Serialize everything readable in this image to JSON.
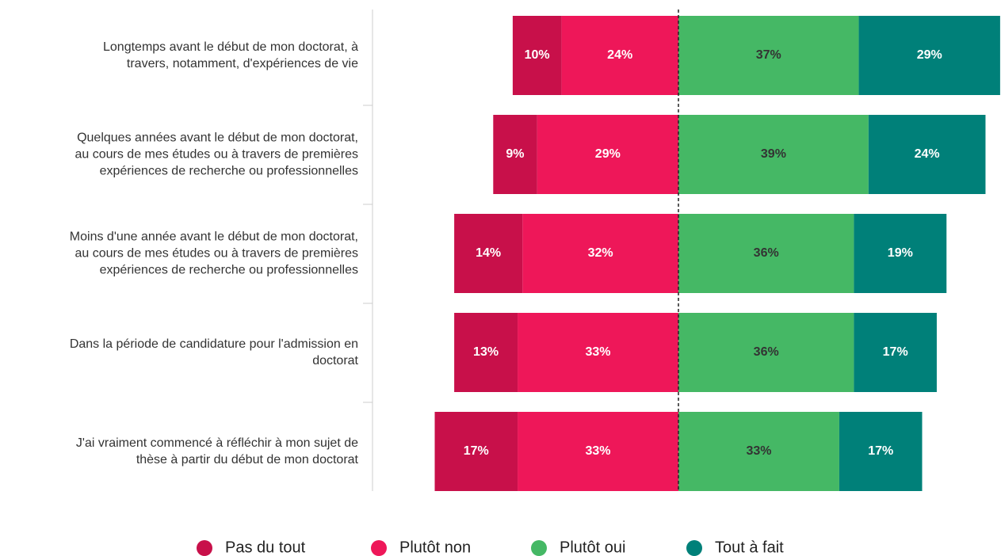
{
  "chart_data": {
    "type": "diverging-bar",
    "categories": [
      "Longtemps avant le début de mon doctorat, à\ntravers, notamment, d'expériences de vie",
      "Quelques années avant le début de mon doctorat,\nau cours de mes études ou à travers de premières\nexpériences de recherche ou professionnelles",
      "Moins d'une année avant le début de mon doctorat,\nau cours de mes études ou à travers de premières\nexpériences de recherche ou professionnelles",
      "Dans la période de candidature pour l'admission en\ndoctorat",
      "J'ai vraiment commencé à réfléchir à mon sujet de\nthèse à partir du début de mon doctorat"
    ],
    "series": [
      {
        "name": "Pas du tout",
        "color": "#c8104a",
        "side": "negative",
        "values": [
          10,
          9,
          14,
          13,
          17
        ],
        "value_labels": [
          "10%",
          "9%",
          "14%",
          "13%",
          "17%"
        ]
      },
      {
        "name": "Plutôt non",
        "color": "#ee1759",
        "side": "negative",
        "values": [
          24,
          29,
          32,
          33,
          33
        ],
        "value_labels": [
          "24%",
          "29%",
          "32%",
          "33%",
          "33%"
        ]
      },
      {
        "name": "Plutôt oui",
        "color": "#45b865",
        "side": "positive",
        "values": [
          37,
          39,
          36,
          36,
          33
        ],
        "value_labels": [
          "37%",
          "39%",
          "36%",
          "36%",
          "33%"
        ]
      },
      {
        "name": "Tout à fait",
        "color": "#008079",
        "side": "positive",
        "values": [
          29,
          24,
          19,
          17,
          17
        ],
        "value_labels": [
          "29%",
          "24%",
          "19%",
          "17%",
          "17%"
        ]
      }
    ]
  }
}
